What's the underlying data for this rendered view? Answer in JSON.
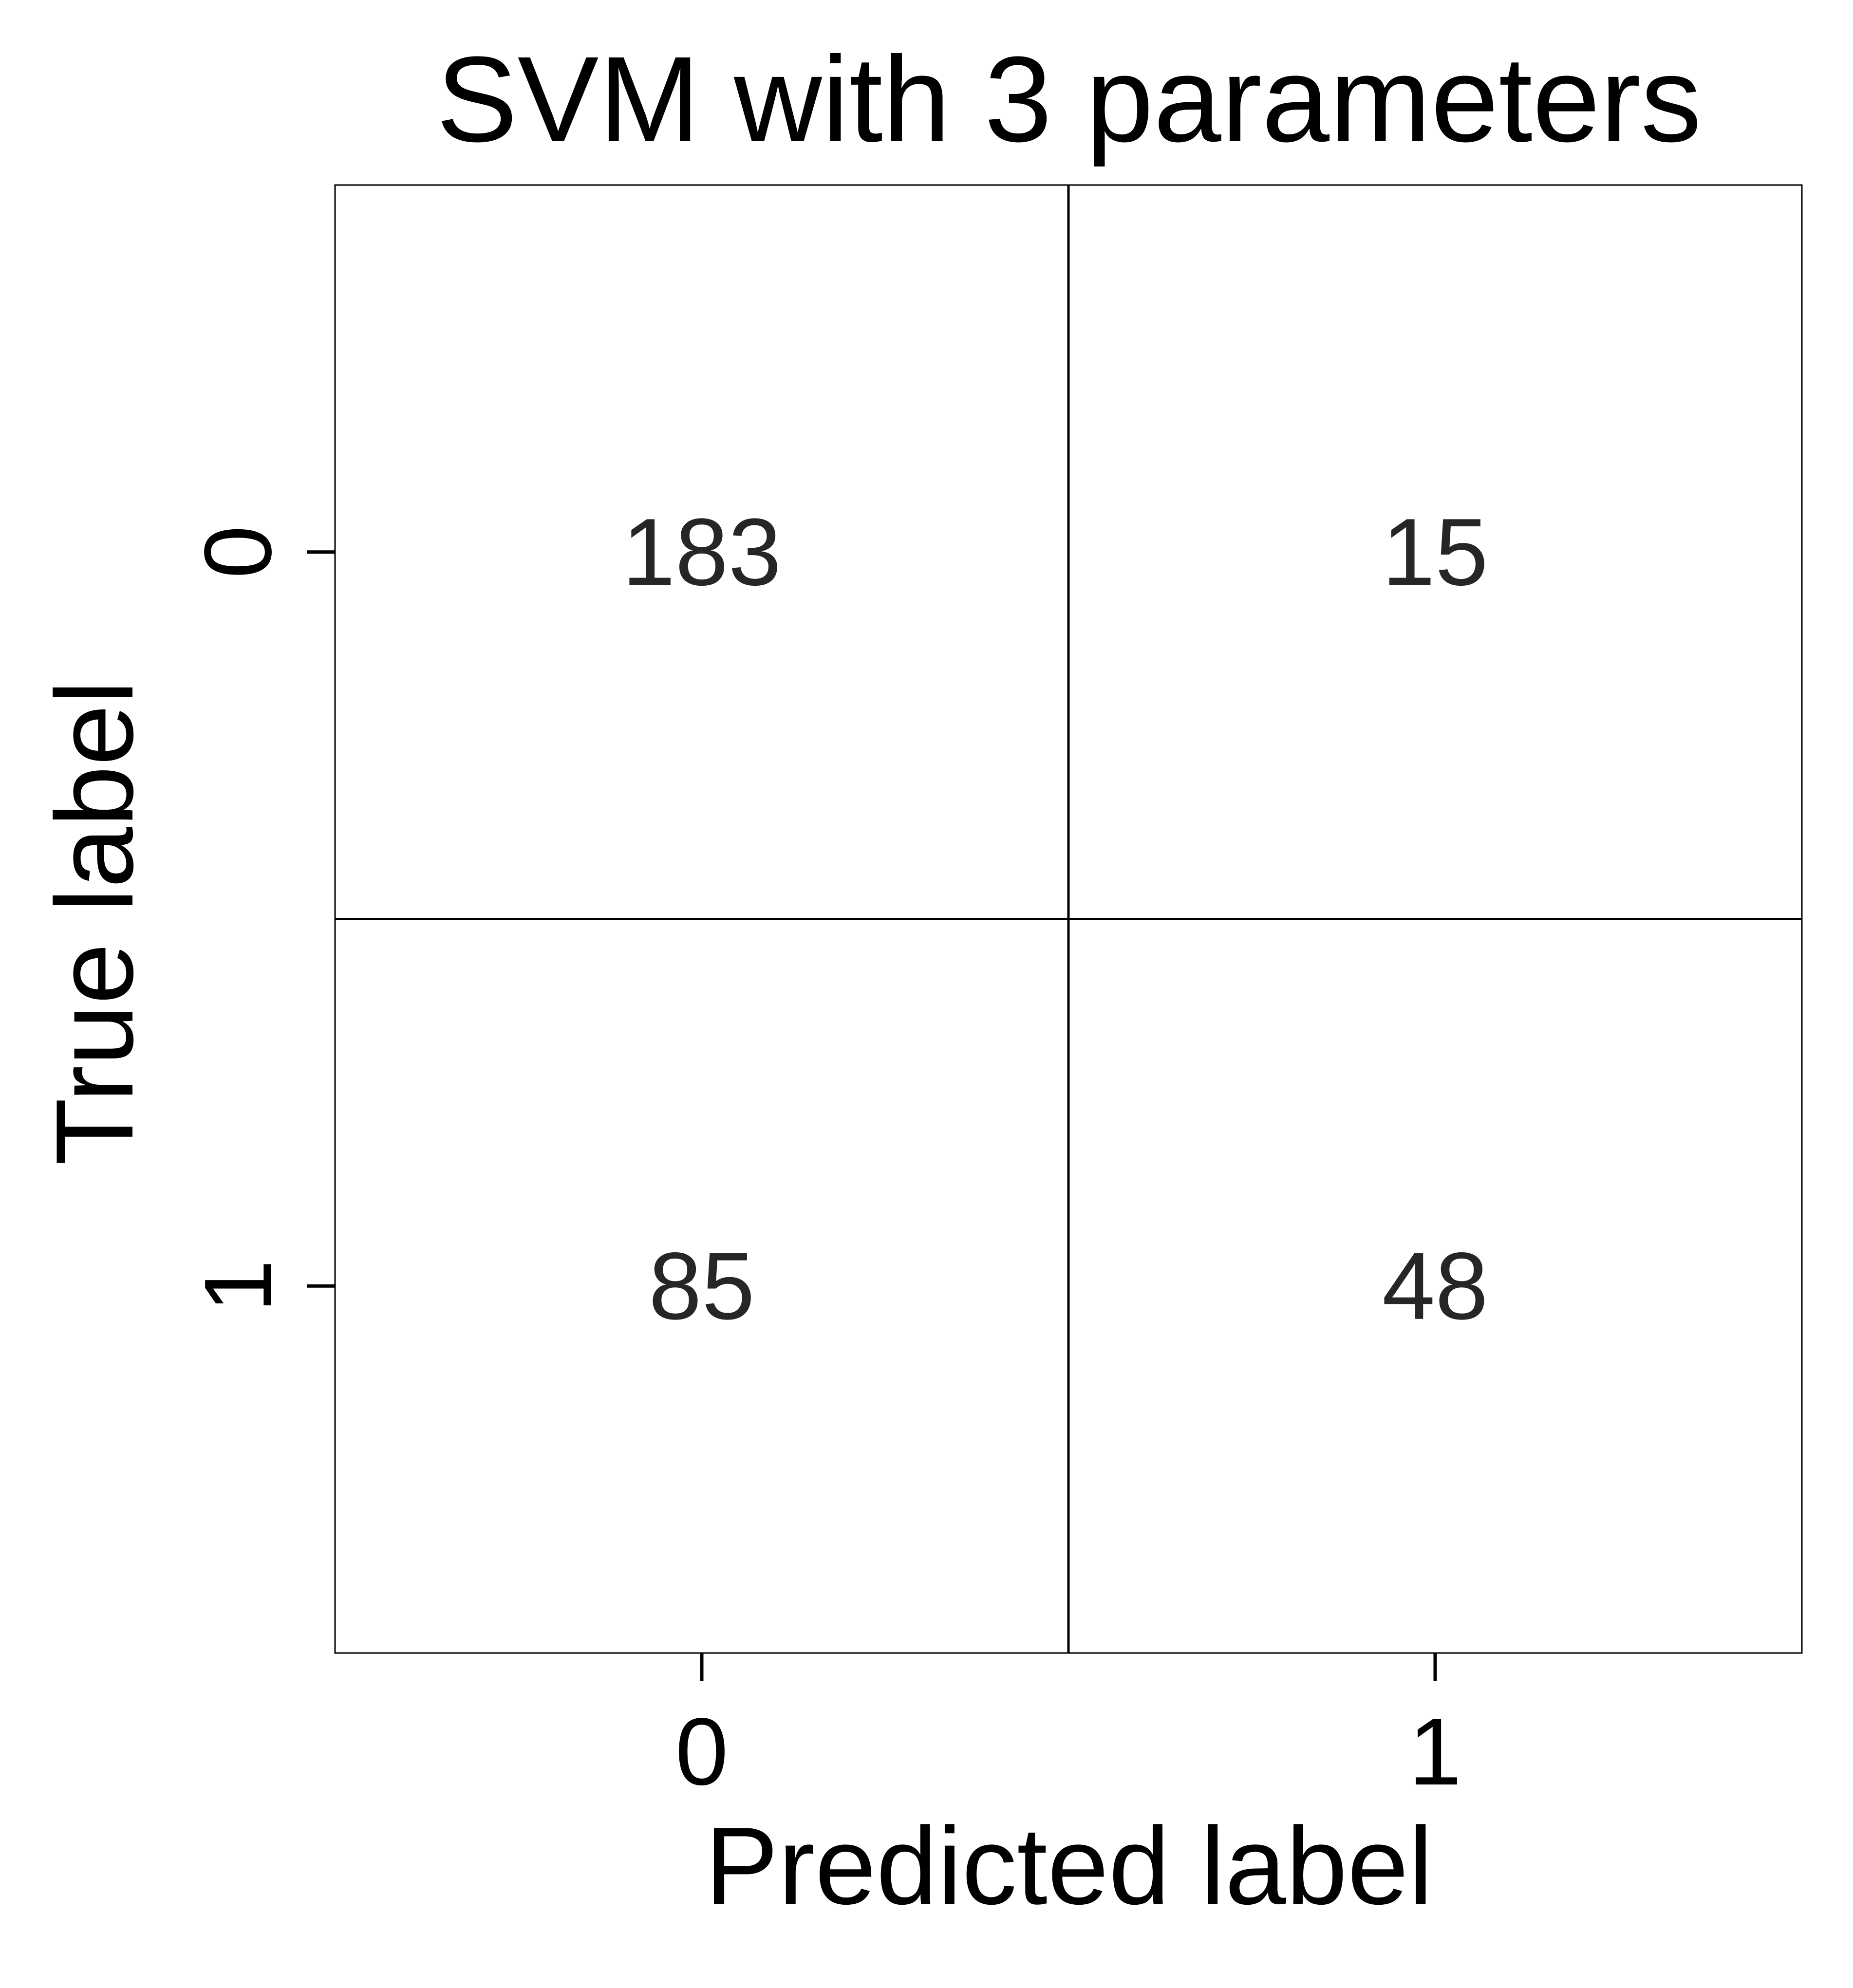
{
  "chart_data": {
    "type": "heatmap",
    "title": "SVM with 3 parameters",
    "xlabel": "Predicted label",
    "ylabel": "True label",
    "x_categories": [
      "0",
      "1"
    ],
    "y_categories": [
      "0",
      "1"
    ],
    "values": [
      [
        183,
        15
      ],
      [
        85,
        48
      ]
    ],
    "colormap": "none",
    "cell_color": "#ffffff",
    "grid": true,
    "legend": "none"
  }
}
